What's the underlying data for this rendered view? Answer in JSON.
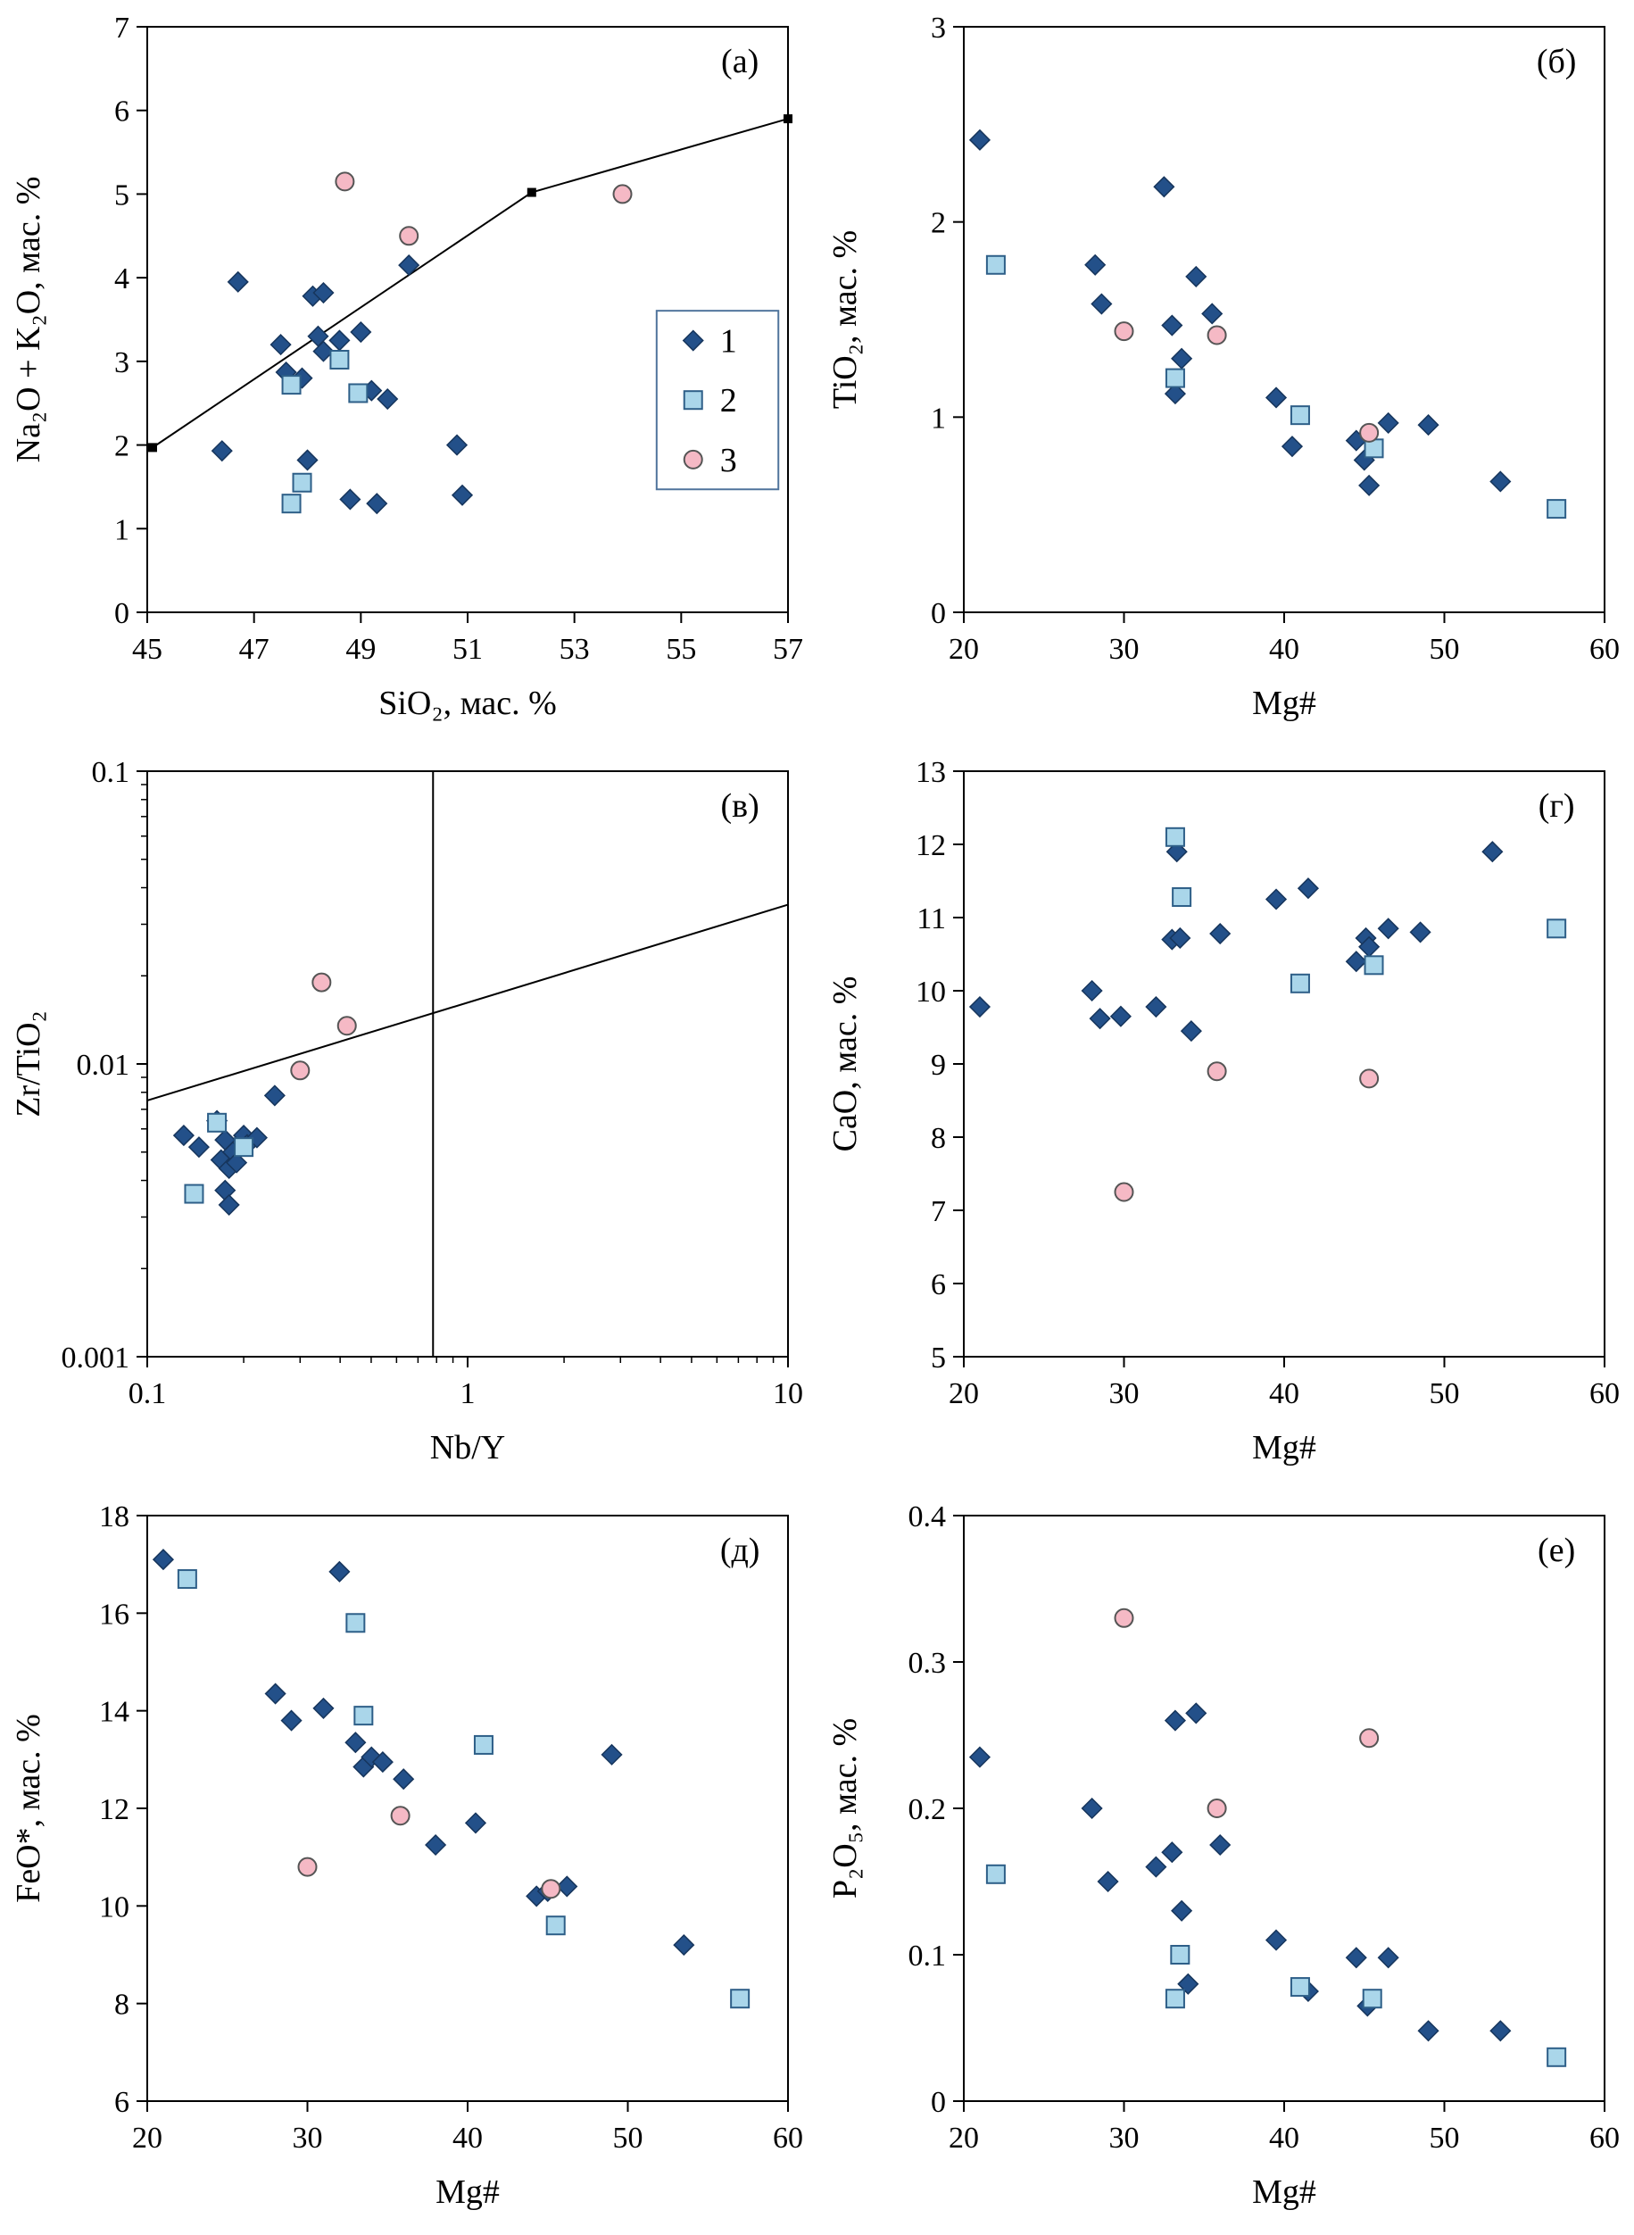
{
  "figure_title": "",
  "markers": {
    "diamond": {
      "fill": "#235089",
      "stroke": "#16355c",
      "size": 11
    },
    "square": {
      "fill": "#aad6ea",
      "stroke": "#2e5f88",
      "size": 10
    },
    "circle": {
      "fill": "#f5b9c5",
      "stroke": "#555555",
      "size": 10
    }
  },
  "legend": {
    "items": [
      {
        "label": "1",
        "marker": "diamond"
      },
      {
        "label": "2",
        "marker": "square"
      },
      {
        "label": "3",
        "marker": "circle"
      }
    ]
  },
  "chart_data": [
    {
      "id": "a",
      "type": "scatter",
      "panel_label": "(а)",
      "xlabel": "SiO₂, мас. %",
      "ylabel": "Na₂O + K₂O, мас. %",
      "xscale": "linear",
      "yscale": "linear",
      "xlim": [
        45,
        57
      ],
      "ylim": [
        0,
        7
      ],
      "xticks": [
        45,
        47,
        49,
        51,
        53,
        55,
        57
      ],
      "yticks": [
        0,
        1,
        2,
        3,
        4,
        5,
        6,
        7
      ],
      "ref_lines": [
        {
          "points": [
            [
              45.1,
              1.97
            ],
            [
              52.2,
              5.02
            ],
            [
              57.0,
              5.9
            ]
          ],
          "vertex_markers": true
        }
      ],
      "series": [
        {
          "name": "1",
          "marker": "diamond",
          "points": [
            [
              46.7,
              3.95
            ],
            [
              46.4,
              1.93
            ],
            [
              47.5,
              3.2
            ],
            [
              47.6,
              2.87
            ],
            [
              47.9,
              2.8
            ],
            [
              48.1,
              3.78
            ],
            [
              48.3,
              3.82
            ],
            [
              48.2,
              3.3
            ],
            [
              48.3,
              3.12
            ],
            [
              48.6,
              3.25
            ],
            [
              48.0,
              1.82
            ],
            [
              49.0,
              3.35
            ],
            [
              49.2,
              2.65
            ],
            [
              49.5,
              2.55
            ],
            [
              48.8,
              1.35
            ],
            [
              49.3,
              1.3
            ],
            [
              49.9,
              4.15
            ],
            [
              50.8,
              2.0
            ],
            [
              50.9,
              1.4
            ]
          ]
        },
        {
          "name": "2",
          "marker": "square",
          "points": [
            [
              47.7,
              2.72
            ],
            [
              47.9,
              1.55
            ],
            [
              47.7,
              1.3
            ],
            [
              48.6,
              3.02
            ],
            [
              48.95,
              2.62
            ]
          ]
        },
        {
          "name": "3",
          "marker": "circle",
          "points": [
            [
              48.7,
              5.15
            ],
            [
              49.9,
              4.5
            ],
            [
              53.9,
              5.0
            ]
          ]
        }
      ],
      "legend": {
        "show": true,
        "x0": 0.795,
        "y0": 0.485,
        "x1": 0.985,
        "y1": 0.79
      }
    },
    {
      "id": "b",
      "type": "scatter",
      "panel_label": "(б)",
      "xlabel": "Mg#",
      "ylabel": "TiO₂, мас. %",
      "xscale": "linear",
      "yscale": "linear",
      "xlim": [
        20,
        60
      ],
      "ylim": [
        0,
        3
      ],
      "xticks": [
        20,
        30,
        40,
        50,
        60
      ],
      "yticks": [
        0,
        1,
        2,
        3
      ],
      "ref_lines": [],
      "series": [
        {
          "name": "1",
          "marker": "diamond",
          "points": [
            [
              21,
              2.42
            ],
            [
              28.2,
              1.78
            ],
            [
              28.6,
              1.58
            ],
            [
              32.5,
              2.18
            ],
            [
              33.0,
              1.47
            ],
            [
              33.6,
              1.3
            ],
            [
              33.2,
              1.12
            ],
            [
              34.5,
              1.72
            ],
            [
              35.5,
              1.53
            ],
            [
              39.5,
              1.1
            ],
            [
              40.5,
              0.85
            ],
            [
              44.5,
              0.88
            ],
            [
              45.0,
              0.78
            ],
            [
              45.3,
              0.65
            ],
            [
              46.5,
              0.97
            ],
            [
              49.0,
              0.96
            ],
            [
              53.5,
              0.67
            ]
          ]
        },
        {
          "name": "2",
          "marker": "square",
          "points": [
            [
              22,
              1.78
            ],
            [
              33.2,
              1.2
            ],
            [
              41,
              1.01
            ],
            [
              45.6,
              0.84
            ],
            [
              57,
              0.53
            ]
          ]
        },
        {
          "name": "3",
          "marker": "circle",
          "points": [
            [
              30,
              1.44
            ],
            [
              35.8,
              1.42
            ],
            [
              45.3,
              0.92
            ]
          ]
        }
      ]
    },
    {
      "id": "v",
      "type": "scatter",
      "panel_label": "(в)",
      "xlabel": "Nb/Y",
      "ylabel": "Zr/TiO₂",
      "xscale": "log",
      "yscale": "log",
      "xlim": [
        0.1,
        10
      ],
      "ylim": [
        0.001,
        0.1
      ],
      "xticks": [
        0.1,
        1,
        10
      ],
      "yticks": [
        0.001,
        0.01,
        0.1
      ],
      "ref_lines": [
        {
          "points": [
            [
              0.78,
              0.001
            ],
            [
              0.78,
              0.1
            ]
          ],
          "vertex_markers": false
        },
        {
          "points": [
            [
              0.1,
              0.0075
            ],
            [
              10,
              0.035
            ]
          ],
          "vertex_markers": false
        }
      ],
      "series": [
        {
          "name": "1",
          "marker": "diamond",
          "points": [
            [
              0.13,
              0.0057
            ],
            [
              0.145,
              0.0052
            ],
            [
              0.165,
              0.0064
            ],
            [
              0.17,
              0.0047
            ],
            [
              0.175,
              0.0055
            ],
            [
              0.18,
              0.0044
            ],
            [
              0.185,
              0.005
            ],
            [
              0.19,
              0.0046
            ],
            [
              0.2,
              0.0057
            ],
            [
              0.205,
              0.0053
            ],
            [
              0.22,
              0.0056
            ],
            [
              0.25,
              0.0078
            ],
            [
              0.175,
              0.0037
            ],
            [
              0.18,
              0.0033
            ]
          ]
        },
        {
          "name": "2",
          "marker": "square",
          "points": [
            [
              0.14,
              0.0036
            ],
            [
              0.165,
              0.0063
            ],
            [
              0.2,
              0.0052
            ]
          ]
        },
        {
          "name": "3",
          "marker": "circle",
          "points": [
            [
              0.35,
              0.019
            ],
            [
              0.42,
              0.0135
            ],
            [
              0.3,
              0.0095
            ]
          ]
        }
      ]
    },
    {
      "id": "g",
      "type": "scatter",
      "panel_label": "(г)",
      "xlabel": "Mg#",
      "ylabel": "CaO, мас. %",
      "xscale": "linear",
      "yscale": "linear",
      "xlim": [
        20,
        60
      ],
      "ylim": [
        5,
        13
      ],
      "xticks": [
        20,
        30,
        40,
        50,
        60
      ],
      "yticks": [
        5,
        6,
        7,
        8,
        9,
        10,
        11,
        12,
        13
      ],
      "ref_lines": [],
      "series": [
        {
          "name": "1",
          "marker": "diamond",
          "points": [
            [
              21,
              9.78
            ],
            [
              28,
              10.0
            ],
            [
              28.5,
              9.62
            ],
            [
              29.8,
              9.65
            ],
            [
              32,
              9.78
            ],
            [
              33,
              10.7
            ],
            [
              33.5,
              10.72
            ],
            [
              33.3,
              11.9
            ],
            [
              34.2,
              9.45
            ],
            [
              36,
              10.78
            ],
            [
              39.5,
              11.25
            ],
            [
              41.5,
              11.4
            ],
            [
              44.5,
              10.4
            ],
            [
              45.1,
              10.72
            ],
            [
              45.3,
              10.6
            ],
            [
              46.5,
              10.85
            ],
            [
              48.5,
              10.8
            ],
            [
              53,
              11.9
            ]
          ]
        },
        {
          "name": "2",
          "marker": "square",
          "points": [
            [
              33.2,
              12.1
            ],
            [
              33.6,
              11.28
            ],
            [
              41,
              10.1
            ],
            [
              45.6,
              10.35
            ],
            [
              57,
              10.85
            ]
          ]
        },
        {
          "name": "3",
          "marker": "circle",
          "points": [
            [
              30,
              7.25
            ],
            [
              35.8,
              8.9
            ],
            [
              45.3,
              8.8
            ]
          ]
        }
      ]
    },
    {
      "id": "d",
      "type": "scatter",
      "panel_label": "(д)",
      "xlabel": "Mg#",
      "ylabel": "FeO*, мас. %",
      "xscale": "linear",
      "yscale": "linear",
      "xlim": [
        20,
        60
      ],
      "ylim": [
        6,
        18
      ],
      "xticks": [
        20,
        30,
        40,
        50,
        60
      ],
      "yticks": [
        6,
        8,
        10,
        12,
        14,
        16,
        18
      ],
      "ref_lines": [],
      "series": [
        {
          "name": "1",
          "marker": "diamond",
          "points": [
            [
              21,
              17.1
            ],
            [
              28,
              14.35
            ],
            [
              29,
              13.8
            ],
            [
              31,
              14.05
            ],
            [
              32,
              16.85
            ],
            [
              33,
              13.35
            ],
            [
              33.5,
              12.85
            ],
            [
              34,
              13.05
            ],
            [
              34.7,
              12.95
            ],
            [
              36,
              12.6
            ],
            [
              38,
              11.25
            ],
            [
              40.5,
              11.7
            ],
            [
              44.3,
              10.2
            ],
            [
              45,
              10.3
            ],
            [
              46.2,
              10.4
            ],
            [
              49,
              13.1
            ],
            [
              53.5,
              9.2
            ]
          ]
        },
        {
          "name": "2",
          "marker": "square",
          "points": [
            [
              22.5,
              16.7
            ],
            [
              33,
              15.8
            ],
            [
              33.5,
              13.9
            ],
            [
              41,
              13.3
            ],
            [
              45.5,
              9.6
            ],
            [
              57,
              8.1
            ]
          ]
        },
        {
          "name": "3",
          "marker": "circle",
          "points": [
            [
              30,
              10.8
            ],
            [
              35.8,
              11.85
            ],
            [
              45.2,
              10.35
            ]
          ]
        }
      ]
    },
    {
      "id": "e",
      "type": "scatter",
      "panel_label": "(е)",
      "xlabel": "Mg#",
      "ylabel": "P₂O₅, мас. %",
      "xscale": "linear",
      "yscale": "linear",
      "xlim": [
        20,
        60
      ],
      "ylim": [
        0,
        0.4
      ],
      "xticks": [
        20,
        30,
        40,
        50,
        60
      ],
      "yticks": [
        0,
        0.1,
        0.2,
        0.3,
        0.4
      ],
      "ref_lines": [],
      "series": [
        {
          "name": "1",
          "marker": "diamond",
          "points": [
            [
              21,
              0.235
            ],
            [
              28,
              0.2
            ],
            [
              29,
              0.15
            ],
            [
              32,
              0.16
            ],
            [
              33,
              0.17
            ],
            [
              33.2,
              0.26
            ],
            [
              34.5,
              0.265
            ],
            [
              33.6,
              0.13
            ],
            [
              34,
              0.08
            ],
            [
              36,
              0.175
            ],
            [
              39.5,
              0.11
            ],
            [
              41.5,
              0.075
            ],
            [
              44.5,
              0.098
            ],
            [
              45.2,
              0.065
            ],
            [
              46.5,
              0.098
            ],
            [
              49,
              0.048
            ],
            [
              53.5,
              0.048
            ]
          ]
        },
        {
          "name": "2",
          "marker": "square",
          "points": [
            [
              22,
              0.155
            ],
            [
              33.5,
              0.1
            ],
            [
              33.2,
              0.07
            ],
            [
              41,
              0.078
            ],
            [
              45.5,
              0.07
            ],
            [
              57,
              0.03
            ]
          ]
        },
        {
          "name": "3",
          "marker": "circle",
          "points": [
            [
              30,
              0.33
            ],
            [
              35.8,
              0.2
            ],
            [
              45.3,
              0.248
            ]
          ]
        }
      ]
    }
  ]
}
